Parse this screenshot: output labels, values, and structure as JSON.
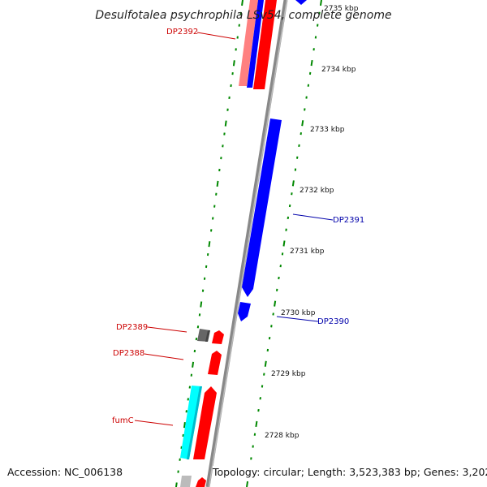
{
  "title": "Desulfotalea psychrophila LSv54, complete genome",
  "accession": "Accession: NC_006138",
  "topology": "Topology: circular; Length: 3,523,383 bp; Genes: 3,202",
  "colors": {
    "forward": "#ff0000",
    "reverse": "#0000ff",
    "light_forward": "#ff8080",
    "cyan": "#00ffff",
    "grey": "#666666",
    "backbone": "#888888",
    "tick": "#008800",
    "label_forward": "#cc0000",
    "label_reverse": "#0000aa"
  },
  "scale": {
    "unit": "kbp",
    "ticks": [
      {
        "label": "2735 kbp",
        "faded": true
      },
      {
        "label": "2734 kbp"
      },
      {
        "label": "2733 kbp"
      },
      {
        "label": "2732 kbp"
      },
      {
        "label": "2731 kbp"
      },
      {
        "label": "2730 kbp"
      },
      {
        "label": "2729 kbp"
      },
      {
        "label": "2728 kbp"
      }
    ]
  },
  "gene_labels": [
    {
      "name": "DP2392",
      "strand": "forward"
    },
    {
      "name": "DP2391",
      "strand": "reverse"
    },
    {
      "name": "DP2390",
      "strand": "reverse"
    },
    {
      "name": "DP2389",
      "strand": "forward"
    },
    {
      "name": "DP2388",
      "strand": "forward"
    },
    {
      "name": "fumC",
      "strand": "forward"
    }
  ]
}
